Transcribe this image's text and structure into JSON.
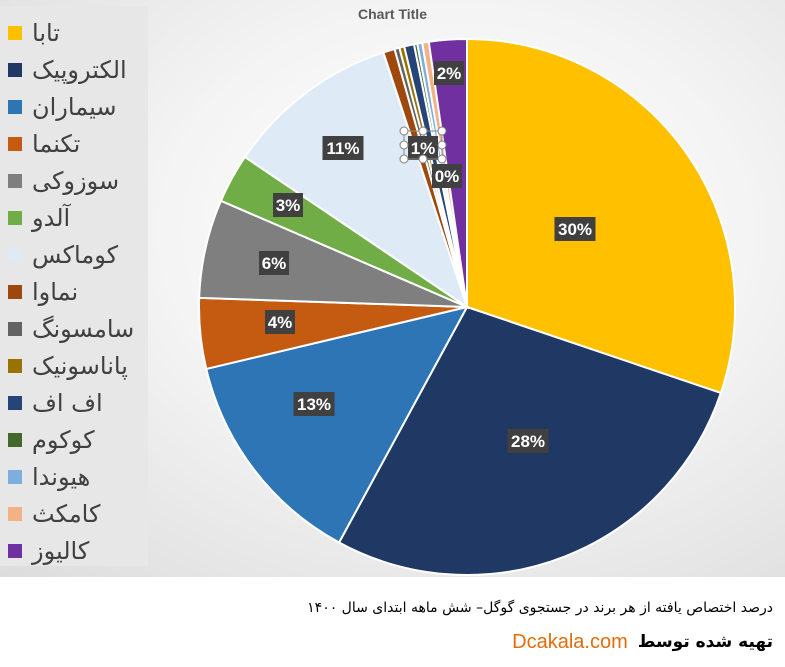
{
  "chart_data": {
    "type": "pie",
    "title": "Chart Title",
    "categories": [
      "تابا",
      "الکتروپیک",
      "سیماران",
      "تکنما",
      "سوزوکی",
      "آلدو",
      "کوماکس",
      "نماوا",
      "سامسونگ",
      "پاناسونیک",
      "اف اف",
      "کوکوم",
      "هیوندا",
      "کامکث",
      "کالیوز"
    ],
    "values": [
      30.5,
      28.0,
      13.5,
      4.3,
      6.0,
      3.0,
      10.6,
      0.7,
      0.3,
      0.3,
      0.6,
      0.2,
      0.3,
      0.4,
      2.3
    ],
    "colors": [
      "#ffc000",
      "#203864",
      "#2e75b6",
      "#c55a11",
      "#7f7f7f",
      "#70ad47",
      "#deebf7",
      "#9e480e",
      "#636363",
      "#997300",
      "#264478",
      "#43682b",
      "#7cafdd",
      "#f4b183",
      "#7030a0"
    ],
    "data_labels": [
      "30%",
      "28%",
      "13%",
      "4%",
      "6%",
      "3%",
      "11%",
      "",
      "",
      "",
      "1%",
      "",
      "",
      "0%",
      "2%"
    ],
    "legend_position": "left"
  },
  "caption": {
    "line1": "درصد اختصاص یافته از هر برند در جستجوی گوگل– شش ماهه ابتدای سال ۱۴۰۰",
    "prepared_by": "تهیه شده توسط",
    "site": "Dcakala.com"
  }
}
